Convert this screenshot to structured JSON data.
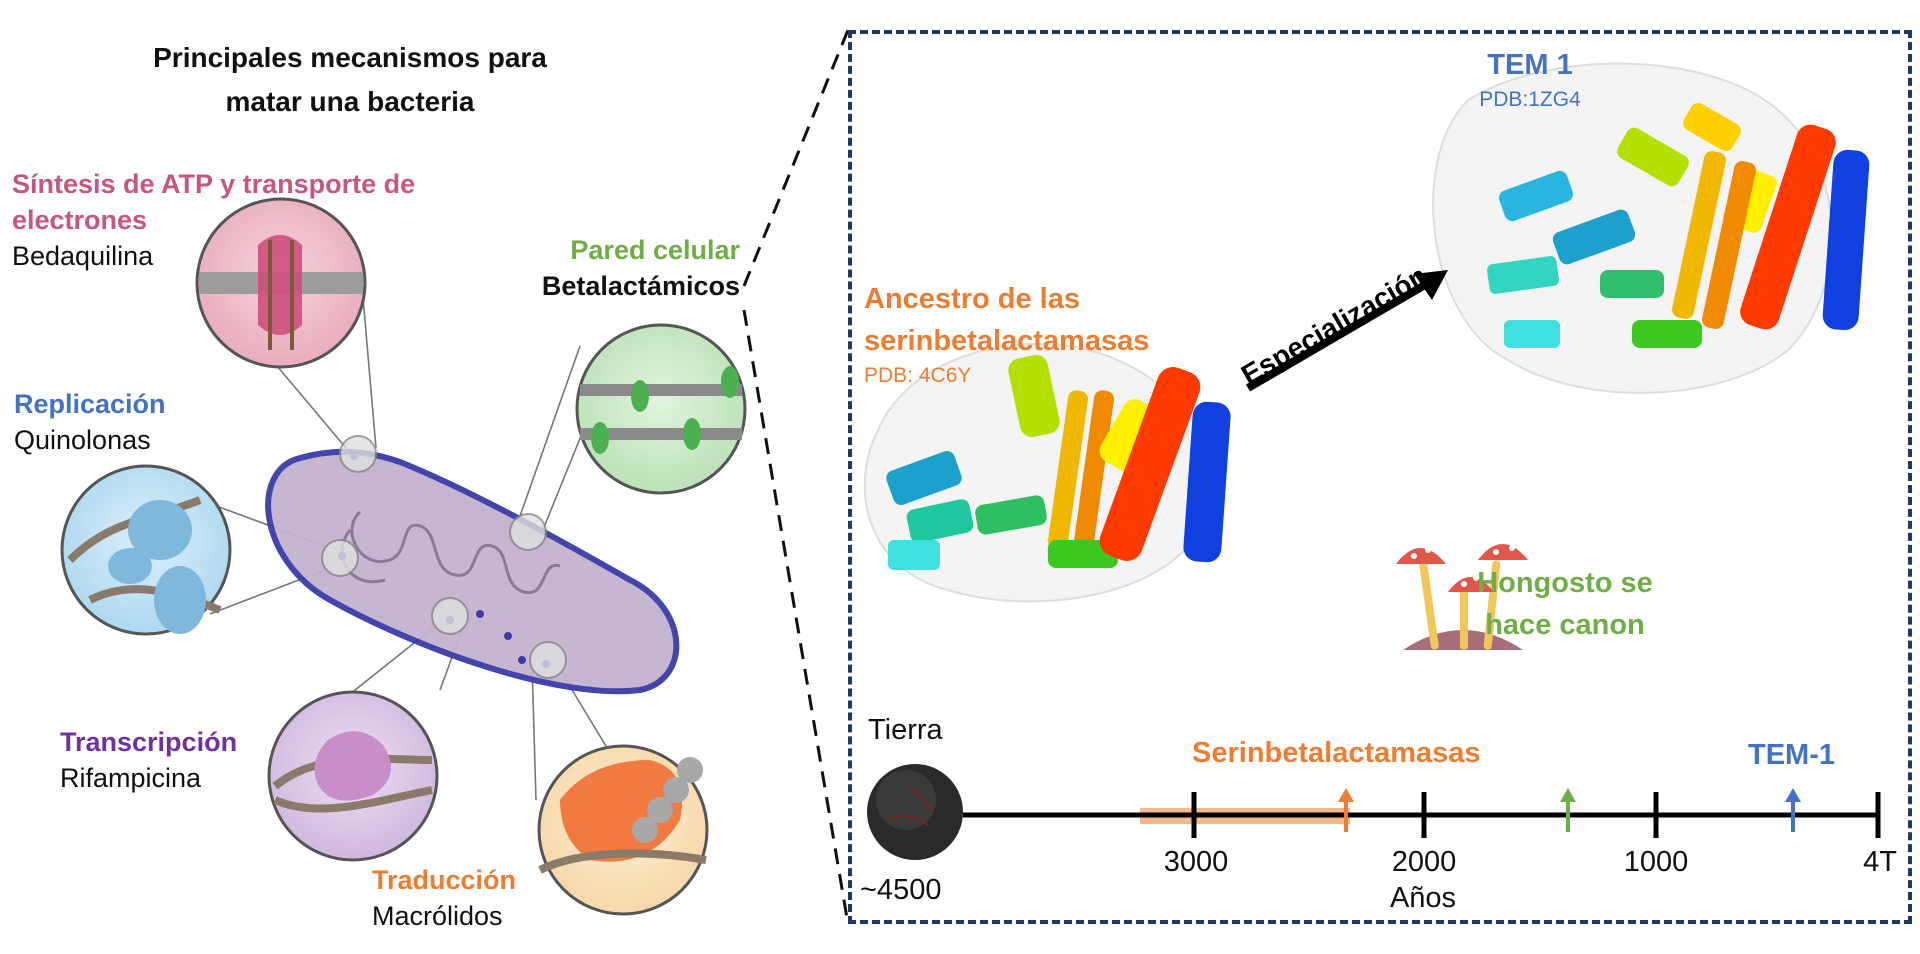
{
  "left": {
    "title_line1": "Principales mecanismos para",
    "title_line2": "matar una bacteria",
    "mechanisms": [
      {
        "name": "Síntesis de ATP y transporte de",
        "name2": "electrones",
        "drug": "Bedaquilina",
        "color": "#c8577c"
      },
      {
        "name": "Pared celular",
        "drug": "Betalactámicos",
        "color": "#70ad47"
      },
      {
        "name": "Replicación",
        "drug": "Quinolonas",
        "color": "#4472c4"
      },
      {
        "name": "Transcripción",
        "drug": "Rifampicina",
        "color": "#7030a0"
      },
      {
        "name": "Traducción",
        "drug": "Macrólidos",
        "color": "#ed7d31"
      }
    ]
  },
  "right": {
    "tem": {
      "name": "TEM 1",
      "pdb": "PDB:1ZG4",
      "color": "#4472c4"
    },
    "ancestor": {
      "name_line1": "Ancestro de las",
      "name_line2": "serinbetalactamasas",
      "pdb": "PDB: 4C6Y",
      "color": "#ed7d31"
    },
    "arrow_label": "Especialización",
    "mushroom_label_line1": "Hongosto se",
    "mushroom_label_line2": "hace canon",
    "mushroom_label_color": "#70ad47"
  },
  "timeline": {
    "earth_label": "Tierra",
    "earth_value": "~4500",
    "axis_label": "Años",
    "ticks": [
      "3000",
      "2000",
      "1000",
      "4T"
    ],
    "events": [
      {
        "label": "Serinbetalactamasas",
        "color": "#ed7d31"
      },
      {
        "label": "TEM-1",
        "color": "#4472c4"
      }
    ]
  },
  "colors": {
    "panel_border": "#1f3864",
    "cell_fill": "#b9aac8",
    "cell_border": "#3b3ca8"
  }
}
